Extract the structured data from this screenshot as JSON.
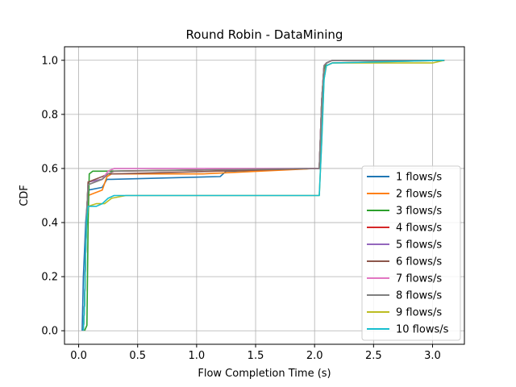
{
  "chart_data": {
    "type": "line",
    "title": "Round Robin - DataMining",
    "xlabel": "Flow Completion Time (s)",
    "ylabel": "CDF",
    "xlim": [
      -0.12,
      3.27
    ],
    "ylim": [
      -0.05,
      1.05
    ],
    "xticks": [
      0.0,
      0.5,
      1.0,
      1.5,
      2.0,
      2.5,
      3.0
    ],
    "xtick_labels": [
      "0.0",
      "0.5",
      "1.0",
      "1.5",
      "2.0",
      "2.5",
      "3.0"
    ],
    "yticks": [
      0.0,
      0.2,
      0.4,
      0.6,
      0.8,
      1.0
    ],
    "ytick_labels": [
      "0.0",
      "0.2",
      "0.4",
      "0.6",
      "0.8",
      "1.0"
    ],
    "grid": true,
    "legend_position": "lower-right",
    "series": [
      {
        "name": "1 flows/s",
        "color": "#1f77b4",
        "x": [
          0.03,
          0.035,
          0.04,
          0.05,
          0.06,
          0.08,
          0.2,
          0.24,
          0.28,
          1.2,
          1.25,
          1.3,
          2.0,
          2.04,
          2.06,
          2.08,
          2.1,
          2.15,
          3.1
        ],
        "y": [
          0.0,
          0.1,
          0.2,
          0.3,
          0.4,
          0.52,
          0.53,
          0.56,
          0.56,
          0.57,
          0.59,
          0.59,
          0.6,
          0.6,
          0.8,
          0.95,
          0.99,
          1.0,
          1.0
        ]
      },
      {
        "name": "2 flows/s",
        "color": "#ff7f0e",
        "x": [
          0.04,
          0.05,
          0.06,
          0.07,
          0.08,
          0.2,
          0.24,
          0.28,
          1.05,
          2.0,
          2.04,
          2.06,
          2.08,
          2.1,
          2.15,
          3.1
        ],
        "y": [
          0.0,
          0.1,
          0.3,
          0.45,
          0.5,
          0.52,
          0.57,
          0.58,
          0.58,
          0.6,
          0.6,
          0.8,
          0.95,
          0.98,
          0.99,
          1.0
        ]
      },
      {
        "name": "3 flows/s",
        "color": "#2ca02c",
        "x": [
          0.05,
          0.07,
          0.08,
          0.09,
          0.12,
          0.2,
          2.0,
          2.04,
          2.06,
          2.08,
          2.1,
          2.15,
          3.1
        ],
        "y": [
          0.0,
          0.02,
          0.4,
          0.58,
          0.59,
          0.59,
          0.6,
          0.6,
          0.85,
          0.97,
          0.99,
          1.0,
          1.0
        ]
      },
      {
        "name": "4 flows/s",
        "color": "#d62728",
        "x": [
          0.04,
          0.05,
          0.06,
          0.07,
          0.08,
          0.2,
          0.25,
          0.3,
          2.0,
          2.04,
          2.06,
          2.08,
          2.1,
          2.15,
          3.1
        ],
        "y": [
          0.0,
          0.1,
          0.3,
          0.45,
          0.55,
          0.56,
          0.58,
          0.59,
          0.6,
          0.6,
          0.85,
          0.98,
          0.99,
          1.0,
          1.0
        ]
      },
      {
        "name": "5 flows/s",
        "color": "#9467bd",
        "x": [
          0.04,
          0.05,
          0.06,
          0.07,
          0.08,
          0.2,
          0.25,
          0.3,
          2.0,
          2.04,
          2.06,
          2.08,
          2.1,
          2.15,
          3.1
        ],
        "y": [
          0.0,
          0.1,
          0.3,
          0.45,
          0.55,
          0.56,
          0.59,
          0.6,
          0.6,
          0.6,
          0.85,
          0.98,
          0.99,
          1.0,
          1.0
        ]
      },
      {
        "name": "6 flows/s",
        "color": "#8c564b",
        "x": [
          0.04,
          0.05,
          0.06,
          0.07,
          0.08,
          0.2,
          0.25,
          0.3,
          2.0,
          2.04,
          2.06,
          2.08,
          2.1,
          2.15,
          3.1
        ],
        "y": [
          0.0,
          0.1,
          0.3,
          0.45,
          0.55,
          0.57,
          0.58,
          0.58,
          0.6,
          0.6,
          0.85,
          0.98,
          0.99,
          1.0,
          1.0
        ]
      },
      {
        "name": "7 flows/s",
        "color": "#e377c2",
        "x": [
          0.04,
          0.05,
          0.06,
          0.07,
          0.08,
          0.2,
          0.25,
          0.3,
          2.0,
          2.04,
          2.06,
          2.08,
          2.1,
          2.15,
          3.1
        ],
        "y": [
          0.0,
          0.1,
          0.3,
          0.45,
          0.54,
          0.56,
          0.59,
          0.6,
          0.6,
          0.6,
          0.85,
          0.98,
          0.99,
          1.0,
          1.0
        ]
      },
      {
        "name": "8 flows/s",
        "color": "#7f7f7f",
        "x": [
          0.04,
          0.05,
          0.06,
          0.07,
          0.08,
          0.2,
          0.25,
          0.3,
          2.0,
          2.04,
          2.06,
          2.08,
          2.1,
          2.15,
          3.1
        ],
        "y": [
          0.0,
          0.1,
          0.3,
          0.45,
          0.54,
          0.56,
          0.58,
          0.59,
          0.6,
          0.6,
          0.85,
          0.98,
          0.99,
          1.0,
          1.0
        ]
      },
      {
        "name": "9 flows/s",
        "color": "#bcbd22",
        "x": [
          0.04,
          0.05,
          0.06,
          0.07,
          0.08,
          0.15,
          0.22,
          0.28,
          0.4,
          2.0,
          2.04,
          2.06,
          2.08,
          2.1,
          2.15,
          3.0,
          3.1
        ],
        "y": [
          0.0,
          0.1,
          0.3,
          0.42,
          0.46,
          0.47,
          0.47,
          0.49,
          0.5,
          0.5,
          0.5,
          0.7,
          0.93,
          0.98,
          0.99,
          0.99,
          1.0
        ]
      },
      {
        "name": "10 flows/s",
        "color": "#17becf",
        "x": [
          0.04,
          0.05,
          0.06,
          0.07,
          0.08,
          0.15,
          0.2,
          0.25,
          0.3,
          0.4,
          2.0,
          2.04,
          2.06,
          2.08,
          2.1,
          2.15,
          3.1
        ],
        "y": [
          0.0,
          0.1,
          0.3,
          0.42,
          0.46,
          0.46,
          0.47,
          0.49,
          0.5,
          0.5,
          0.5,
          0.5,
          0.7,
          0.93,
          0.98,
          0.99,
          1.0
        ]
      }
    ]
  }
}
